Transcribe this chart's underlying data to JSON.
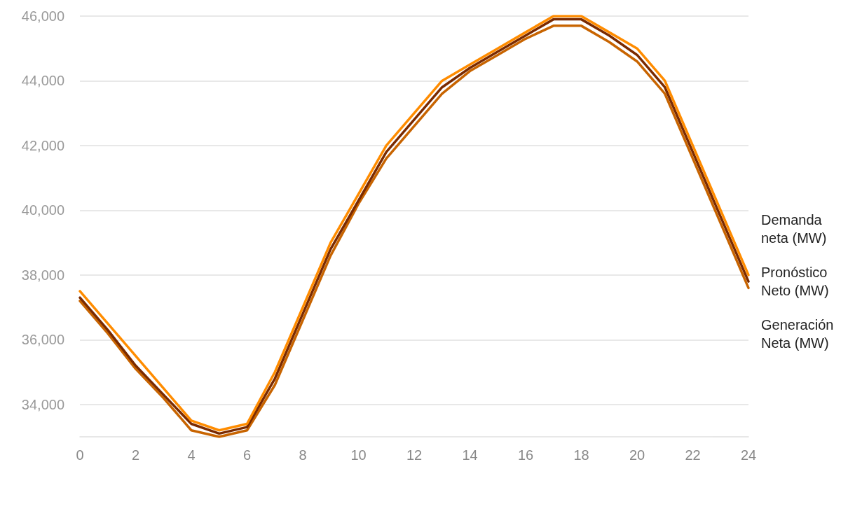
{
  "chart_data": {
    "type": "line",
    "x": [
      0,
      1,
      2,
      3,
      4,
      5,
      6,
      7,
      8,
      9,
      10,
      11,
      12,
      13,
      14,
      15,
      16,
      17,
      18,
      19,
      20,
      21,
      22,
      23,
      24
    ],
    "series": [
      {
        "name": "Demanda neta (MW)",
        "color": "#ff8c00",
        "values": [
          37500,
          36500,
          35500,
          34500,
          33500,
          33200,
          33400,
          35000,
          37000,
          39000,
          40500,
          42000,
          43000,
          44000,
          44500,
          45000,
          45500,
          46000,
          46000,
          45500,
          45000,
          44000,
          42000,
          40000,
          38000
        ]
      },
      {
        "name": "Pronóstico Neto (MW)",
        "color": "#7a2a00",
        "values": [
          37300,
          36300,
          35200,
          34300,
          33400,
          33100,
          33300,
          34800,
          36800,
          38800,
          40300,
          41800,
          42800,
          43800,
          44400,
          44900,
          45400,
          45900,
          45900,
          45400,
          44800,
          43800,
          41800,
          39800,
          37800
        ]
      },
      {
        "name": "Generación Neta (MW)",
        "color": "#c86400",
        "values": [
          37200,
          36200,
          35100,
          34200,
          33200,
          33000,
          33200,
          34600,
          36600,
          38600,
          40200,
          41600,
          42600,
          43600,
          44300,
          44800,
          45300,
          45700,
          45700,
          45200,
          44600,
          43600,
          41600,
          39600,
          37600
        ]
      }
    ],
    "xlim": [
      0,
      24
    ],
    "xticks": [
      0,
      2,
      4,
      6,
      8,
      10,
      12,
      14,
      16,
      18,
      20,
      22,
      24
    ],
    "ylim": [
      33000,
      46000
    ],
    "yticks": [
      {
        "value": 34000,
        "label": "34,000"
      },
      {
        "value": 36000,
        "label": "36,000"
      },
      {
        "value": 38000,
        "label": "38,000"
      },
      {
        "value": 40000,
        "label": "40,000"
      },
      {
        "value": 42000,
        "label": "42,000"
      },
      {
        "value": 44000,
        "label": "44,000"
      },
      {
        "value": 46000,
        "label": "46,000"
      }
    ],
    "grid": "y",
    "legend": false,
    "marker": "none",
    "line_style": "solid"
  }
}
